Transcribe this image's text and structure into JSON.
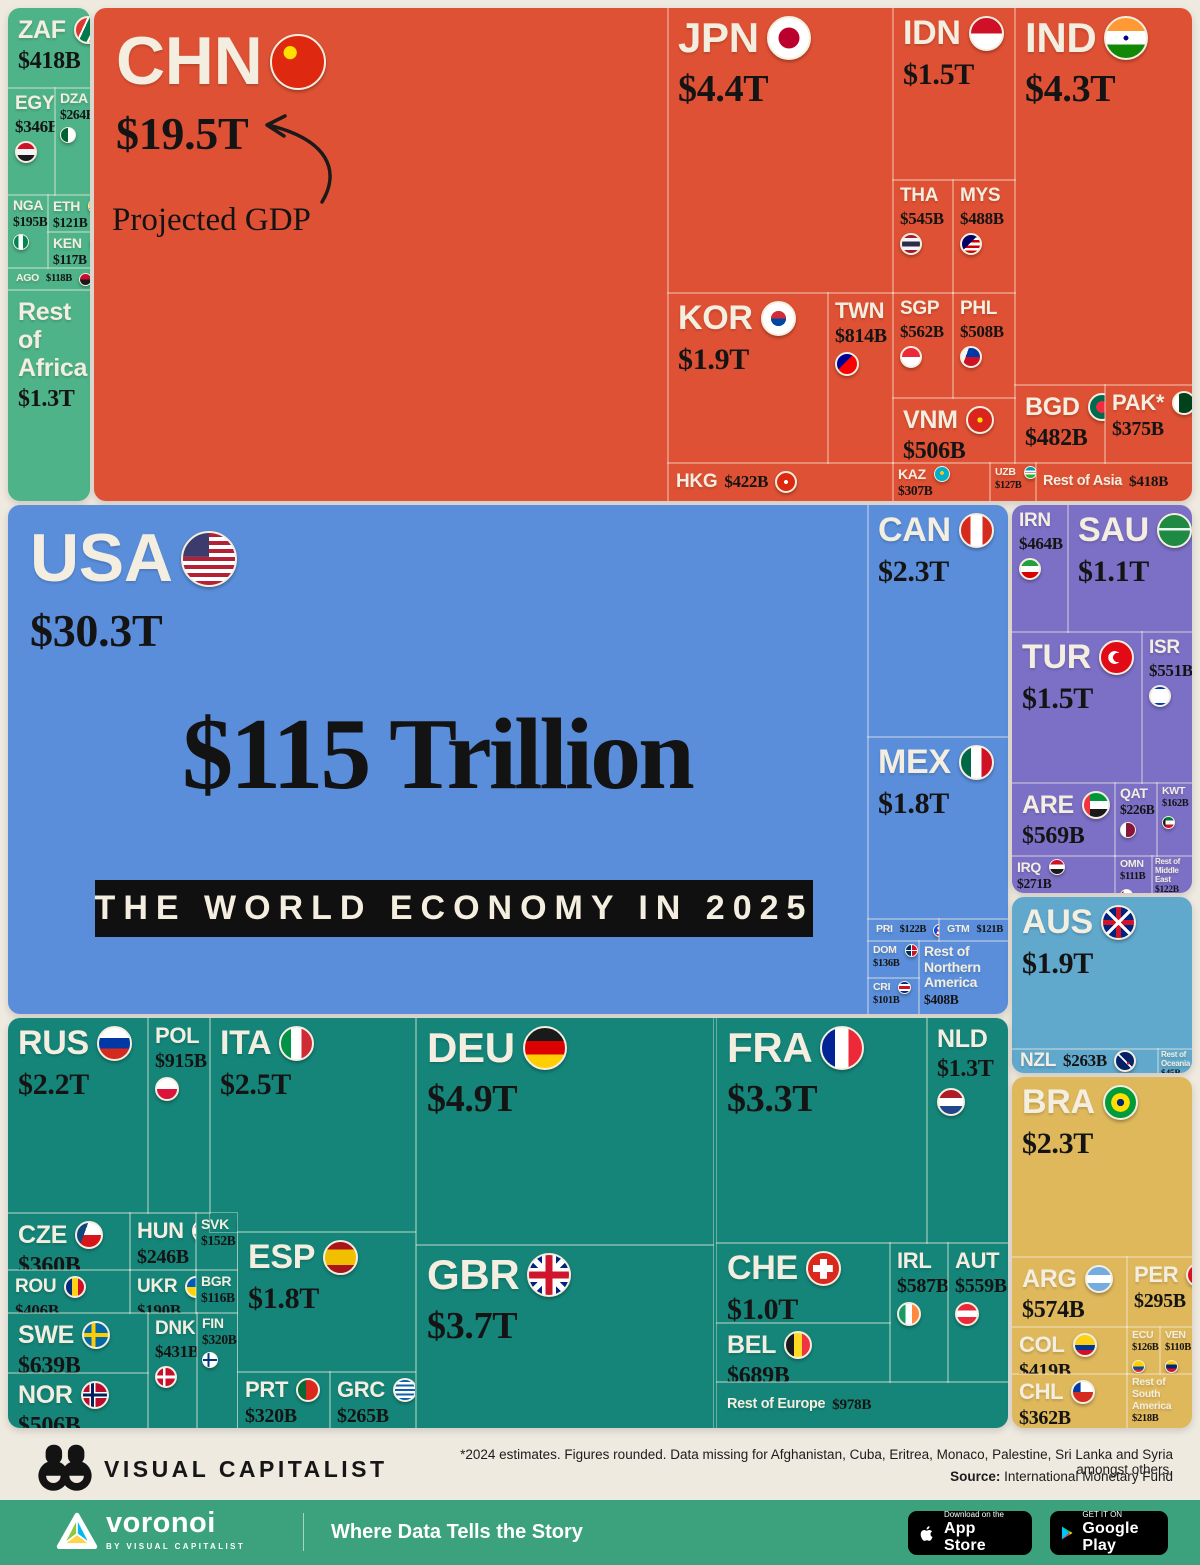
{
  "title": {
    "headline": "$115 Trillion",
    "banner": "THE WORLD ECONOMY IN 2025"
  },
  "annotation": {
    "label": "Projected GDP"
  },
  "colors": {
    "background": "#EFEAE0",
    "africa": "#4FB389",
    "asia": "#DF5134",
    "north_america": "#5A8EDB",
    "middle_east": "#7C70C6",
    "oceania": "#60A8CC",
    "europe": "#15857A",
    "south_america": "#DFB85C",
    "banner_bg": "#101010",
    "tile_label": "#F3EEDF",
    "value_text": "#141414",
    "voronoi_green": "#3BA27D"
  },
  "regions": {
    "africa": {
      "tiles": [
        {
          "code": "ZAF",
          "value": "$418B",
          "flag": "zaf"
        },
        {
          "code": "EGY",
          "value": "$346B",
          "flag": "egy"
        },
        {
          "code": "DZA",
          "value": "$264B",
          "flag": "dza"
        },
        {
          "code": "NGA",
          "value": "$195B",
          "flag": "nga"
        },
        {
          "code": "ETH",
          "value": "$121B",
          "flag": "eth"
        },
        {
          "code": "KEN",
          "value": "$117B",
          "flag": "ken"
        },
        {
          "code": "AGO",
          "value": "$118B",
          "flag": "ago"
        },
        {
          "code": "Rest of\nAfrica",
          "value": "$1.3T",
          "flag": null
        }
      ]
    },
    "asia": {
      "tiles": [
        {
          "code": "CHN",
          "value": "$19.5T",
          "flag": "chn"
        },
        {
          "code": "JPN",
          "value": "$4.4T",
          "flag": "jpn"
        },
        {
          "code": "KOR",
          "value": "$1.9T",
          "flag": "kor"
        },
        {
          "code": "TWN",
          "value": "$814B",
          "flag": "twn"
        },
        {
          "code": "HKG",
          "value": "$422B",
          "flag": "hkg"
        },
        {
          "code": "IDN",
          "value": "$1.5T",
          "flag": "idn"
        },
        {
          "code": "THA",
          "value": "$545B",
          "flag": "tha"
        },
        {
          "code": "MYS",
          "value": "$488B",
          "flag": "mys"
        },
        {
          "code": "SGP",
          "value": "$562B",
          "flag": "sgp"
        },
        {
          "code": "PHL",
          "value": "$508B",
          "flag": "phl"
        },
        {
          "code": "VNM",
          "value": "$506B",
          "flag": "vnm"
        },
        {
          "code": "KAZ",
          "value": "$307B",
          "flag": "kaz"
        },
        {
          "code": "UZB",
          "value": "$127B",
          "flag": "uzb"
        },
        {
          "code": "Rest of Asia",
          "value": "$418B",
          "flag": null
        },
        {
          "code": "IND",
          "value": "$4.3T",
          "flag": "ind"
        },
        {
          "code": "BGD",
          "value": "$482B",
          "flag": "bgd"
        },
        {
          "code": "PAK*",
          "value": "$375B",
          "flag": "pak"
        }
      ]
    },
    "north_america": {
      "tiles": [
        {
          "code": "USA",
          "value": "$30.3T",
          "flag": "usa"
        },
        {
          "code": "CAN",
          "value": "$2.3T",
          "flag": "can"
        },
        {
          "code": "MEX",
          "value": "$1.8T",
          "flag": "mex"
        },
        {
          "code": "PRI",
          "value": "$122B",
          "flag": "pri"
        },
        {
          "code": "GTM",
          "value": "$121B",
          "flag": "gtm"
        },
        {
          "code": "DOM",
          "value": "$136B",
          "flag": "dom"
        },
        {
          "code": "CRI",
          "value": "$101B",
          "flag": "cri"
        },
        {
          "code": "Rest of\nNorthern\nAmerica",
          "value": "$408B",
          "flag": null
        }
      ]
    },
    "middle_east": {
      "tiles": [
        {
          "code": "IRN",
          "value": "$464B",
          "flag": "irn"
        },
        {
          "code": "SAU",
          "value": "$1.1T",
          "flag": "sau"
        },
        {
          "code": "TUR",
          "value": "$1.5T",
          "flag": "tur"
        },
        {
          "code": "ISR",
          "value": "$551B",
          "flag": "isr"
        },
        {
          "code": "ARE",
          "value": "$569B",
          "flag": "are"
        },
        {
          "code": "QAT",
          "value": "$226B",
          "flag": "qat"
        },
        {
          "code": "KWT",
          "value": "$162B",
          "flag": "kwt"
        },
        {
          "code": "IRQ",
          "value": "$271B",
          "flag": "irq"
        },
        {
          "code": "OMN",
          "value": "$111B",
          "flag": "omn"
        },
        {
          "code": "Rest of\nMiddle\nEast",
          "value": "$122B",
          "flag": null
        }
      ]
    },
    "oceania": {
      "tiles": [
        {
          "code": "AUS",
          "value": "$1.9T",
          "flag": "aus"
        },
        {
          "code": "NZL",
          "value": "$263B",
          "flag": "nzl"
        },
        {
          "code": "Rest of\nOceania",
          "value": "$45B",
          "flag": null
        }
      ]
    },
    "europe": {
      "tiles": [
        {
          "code": "RUS",
          "value": "$2.2T",
          "flag": "rus"
        },
        {
          "code": "POL",
          "value": "$915B",
          "flag": "pol"
        },
        {
          "code": "ITA",
          "value": "$2.5T",
          "flag": "ita"
        },
        {
          "code": "CZE",
          "value": "$360B",
          "flag": "cze"
        },
        {
          "code": "HUN",
          "value": "$246B",
          "flag": "hun"
        },
        {
          "code": "SVK",
          "value": "$152B",
          "flag": "svk"
        },
        {
          "code": "ROU",
          "value": "$406B",
          "flag": "rou"
        },
        {
          "code": "UKR",
          "value": "$190B",
          "flag": "ukr"
        },
        {
          "code": "BGR",
          "value": "$116B",
          "flag": "bgr"
        },
        {
          "code": "SWE",
          "value": "$639B",
          "flag": "swe"
        },
        {
          "code": "DNK",
          "value": "$431B",
          "flag": "dnk"
        },
        {
          "code": "FIN",
          "value": "$320B",
          "flag": "fin"
        },
        {
          "code": "NOR",
          "value": "$506B",
          "flag": "nor"
        },
        {
          "code": "ESP",
          "value": "$1.8T",
          "flag": "esp"
        },
        {
          "code": "PRT",
          "value": "$320B",
          "flag": "prt"
        },
        {
          "code": "GRC",
          "value": "$265B",
          "flag": "grc"
        },
        {
          "code": "DEU",
          "value": "$4.9T",
          "flag": "deu"
        },
        {
          "code": "GBR",
          "value": "$3.7T",
          "flag": "gbr"
        },
        {
          "code": "FRA",
          "value": "$3.3T",
          "flag": "fra"
        },
        {
          "code": "NLD",
          "value": "$1.3T",
          "flag": "nld"
        },
        {
          "code": "CHE",
          "value": "$1.0T",
          "flag": "che"
        },
        {
          "code": "IRL",
          "value": "$587B",
          "flag": "irl"
        },
        {
          "code": "AUT",
          "value": "$559B",
          "flag": "aut"
        },
        {
          "code": "BEL",
          "value": "$689B",
          "flag": "bel"
        },
        {
          "code": "Rest of Europe",
          "value": "$978B",
          "flag": null
        }
      ]
    },
    "south_america": {
      "tiles": [
        {
          "code": "BRA",
          "value": "$2.3T",
          "flag": "bra"
        },
        {
          "code": "ARG",
          "value": "$574B",
          "flag": "arg"
        },
        {
          "code": "PER",
          "value": "$295B",
          "flag": "per"
        },
        {
          "code": "COL",
          "value": "$419B",
          "flag": "col"
        },
        {
          "code": "ECU",
          "value": "$126B",
          "flag": "ecu"
        },
        {
          "code": "VEN",
          "value": "$110B",
          "flag": "ven"
        },
        {
          "code": "CHL",
          "value": "$362B",
          "flag": "chl"
        },
        {
          "code": "Rest of\nSouth America",
          "value": "$218B",
          "flag": null
        }
      ]
    }
  },
  "footer": {
    "brand": "VISUAL CAPITALIST",
    "note": "*2024 estimates. Figures rounded. Data missing for Afghanistan, Cuba, Eritrea, Monaco, Palestine, Sri Lanka and Syria amongst others.",
    "source_label": "Source:",
    "source": "International Monetary Fund"
  },
  "voronoi_bar": {
    "brand": "voronoi",
    "sub_brand": "BY VISUAL CAPITALIST",
    "tagline": "Where Data Tells the Story",
    "appstore_line1": "Download on the",
    "appstore_line2": "App Store",
    "gplay_line1": "GET IT ON",
    "gplay_line2": "Google Play"
  },
  "chart_data": {
    "type": "treemap",
    "title": "$115 Trillion — The World Economy in 2025",
    "unit": "projected GDP, USD billions (IMF, 2025)",
    "total_label": "$115 Trillion",
    "series": [
      {
        "name": "Asia",
        "color": "#DF5134",
        "points": [
          [
            "CHN",
            19500
          ],
          [
            "JPN",
            4400
          ],
          [
            "IND",
            4300
          ],
          [
            "KOR",
            1900
          ],
          [
            "IDN",
            1500
          ],
          [
            "TWN",
            814
          ],
          [
            "SGP",
            562
          ],
          [
            "THA",
            545
          ],
          [
            "PHL",
            508
          ],
          [
            "VNM",
            506
          ],
          [
            "MYS",
            488
          ],
          [
            "BGD",
            482
          ],
          [
            "HKG",
            422
          ],
          [
            "Rest of Asia",
            418
          ],
          [
            "PAK",
            375
          ],
          [
            "KAZ",
            307
          ],
          [
            "UZB",
            127
          ]
        ]
      },
      {
        "name": "Africa",
        "color": "#4FB389",
        "points": [
          [
            "Rest of Africa",
            1300
          ],
          [
            "ZAF",
            418
          ],
          [
            "EGY",
            346
          ],
          [
            "DZA",
            264
          ],
          [
            "NGA",
            195
          ],
          [
            "ETH",
            121
          ],
          [
            "AGO",
            118
          ],
          [
            "KEN",
            117
          ]
        ]
      },
      {
        "name": "North America",
        "color": "#5A8EDB",
        "points": [
          [
            "USA",
            30300
          ],
          [
            "CAN",
            2300
          ],
          [
            "MEX",
            1800
          ],
          [
            "Rest of Northern America",
            408
          ],
          [
            "DOM",
            136
          ],
          [
            "PRI",
            122
          ],
          [
            "GTM",
            121
          ],
          [
            "CRI",
            101
          ]
        ]
      },
      {
        "name": "Middle East",
        "color": "#7C70C6",
        "points": [
          [
            "TUR",
            1500
          ],
          [
            "SAU",
            1100
          ],
          [
            "ARE",
            569
          ],
          [
            "ISR",
            551
          ],
          [
            "IRN",
            464
          ],
          [
            "IRQ",
            271
          ],
          [
            "QAT",
            226
          ],
          [
            "KWT",
            162
          ],
          [
            "Rest of Middle East",
            122
          ],
          [
            "OMN",
            111
          ]
        ]
      },
      {
        "name": "Oceania",
        "color": "#60A8CC",
        "points": [
          [
            "AUS",
            1900
          ],
          [
            "NZL",
            263
          ],
          [
            "Rest of Oceania",
            45
          ]
        ]
      },
      {
        "name": "Europe",
        "color": "#15857A",
        "points": [
          [
            "DEU",
            4900
          ],
          [
            "GBR",
            3700
          ],
          [
            "FRA",
            3300
          ],
          [
            "ITA",
            2500
          ],
          [
            "RUS",
            2200
          ],
          [
            "ESP",
            1800
          ],
          [
            "NLD",
            1300
          ],
          [
            "CHE",
            1000
          ],
          [
            "Rest of Europe",
            978
          ],
          [
            "POL",
            915
          ],
          [
            "BEL",
            689
          ],
          [
            "SWE",
            639
          ],
          [
            "IRL",
            587
          ],
          [
            "AUT",
            559
          ],
          [
            "NOR",
            506
          ],
          [
            "DNK",
            431
          ],
          [
            "ROU",
            406
          ],
          [
            "CZE",
            360
          ],
          [
            "FIN",
            320
          ],
          [
            "PRT",
            320
          ],
          [
            "GRC",
            265
          ],
          [
            "HUN",
            246
          ],
          [
            "UKR",
            190
          ],
          [
            "SVK",
            152
          ],
          [
            "BGR",
            116
          ]
        ]
      },
      {
        "name": "South America",
        "color": "#DFB85C",
        "points": [
          [
            "BRA",
            2300
          ],
          [
            "ARG",
            574
          ],
          [
            "COL",
            419
          ],
          [
            "CHL",
            362
          ],
          [
            "PER",
            295
          ],
          [
            "Rest of South America",
            218
          ],
          [
            "ECU",
            126
          ],
          [
            "VEN",
            110
          ]
        ]
      }
    ]
  }
}
